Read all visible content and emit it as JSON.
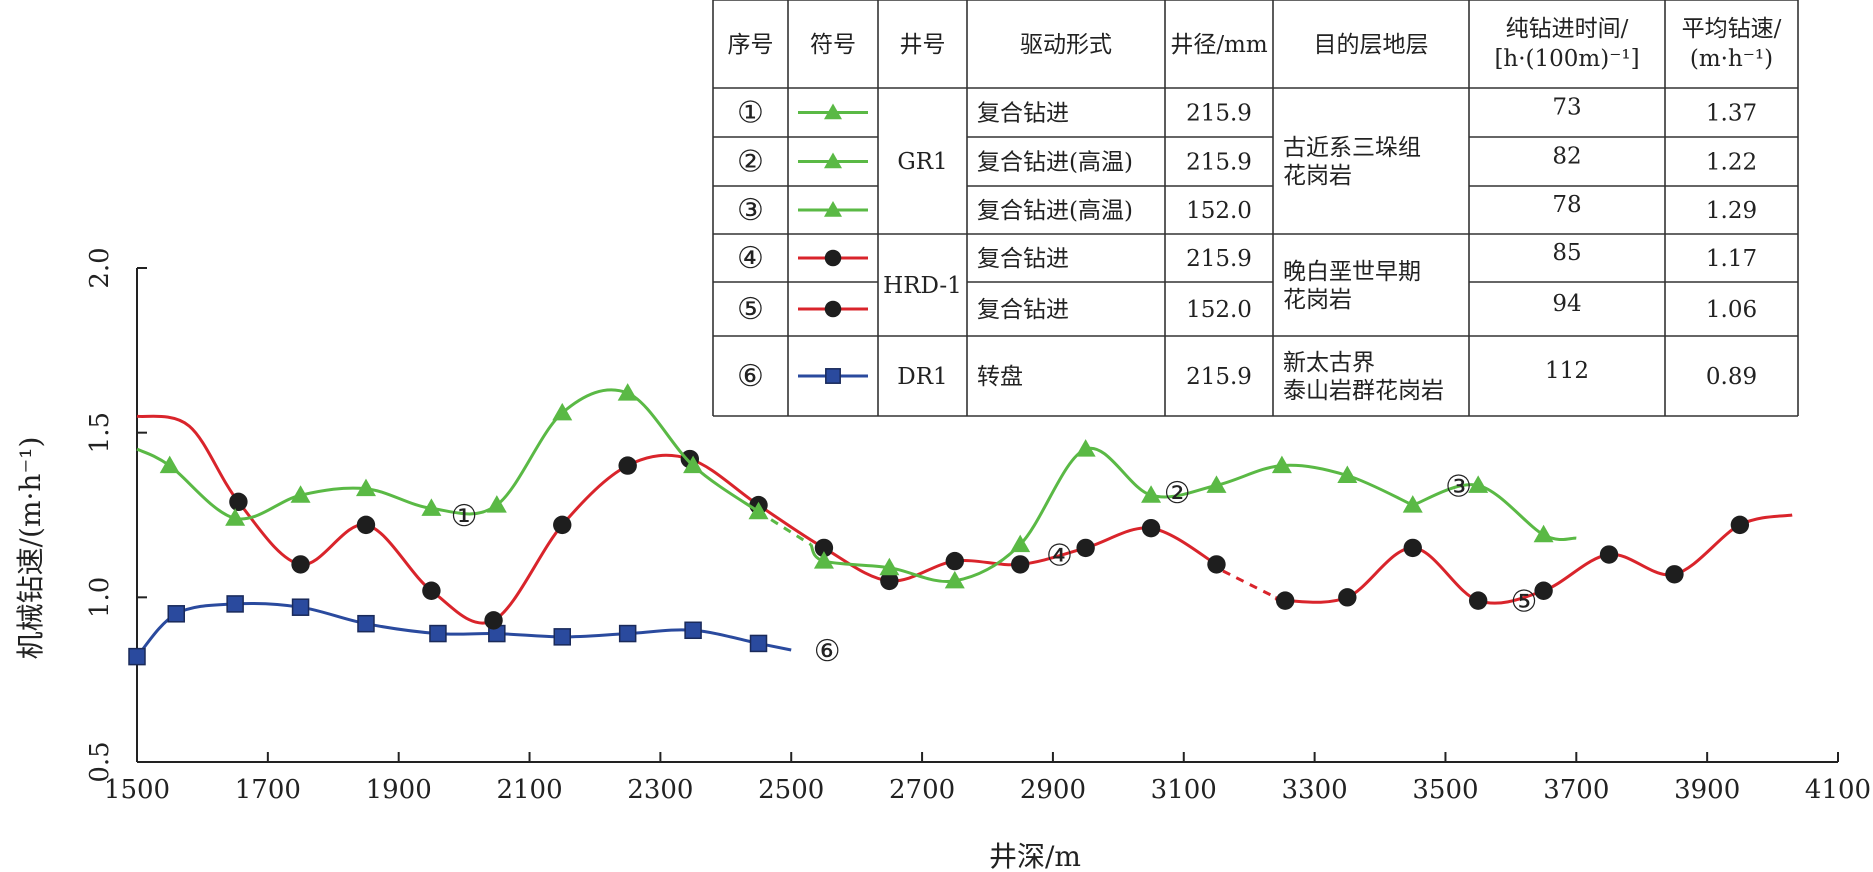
{
  "chart_data": {
    "type": "line",
    "xlabel": "井深/m",
    "ylabel": "机械钻速/(m·h⁻¹)",
    "xlim": [
      1500,
      4100
    ],
    "ylim": [
      0.5,
      2.0
    ],
    "x_ticks": [
      "1500",
      "1700",
      "1900",
      "2100",
      "2300",
      "2500",
      "2700",
      "2900",
      "3100",
      "3300",
      "3500",
      "3700",
      "3900",
      "4100"
    ],
    "y_ticks": [
      "0.5",
      "1.0",
      "1.5",
      "2.0"
    ],
    "grid": false,
    "colors": {
      "gr1": "#5ab945",
      "hrd1": "#d9242b",
      "dr1": "#2a4a9e",
      "axis": "#222222"
    },
    "series": [
      {
        "id": "s1",
        "name": "①",
        "color": "#5ab945",
        "marker": "triangle",
        "label_x": 2000,
        "label_y": 1.25,
        "points": [
          [
            1550,
            1.4
          ],
          [
            1650,
            1.24
          ],
          [
            1750,
            1.31
          ],
          [
            1850,
            1.33
          ],
          [
            1950,
            1.27
          ],
          [
            2050,
            1.28
          ],
          [
            2150,
            1.56
          ],
          [
            2250,
            1.62
          ],
          [
            2350,
            1.4
          ],
          [
            2450,
            1.26
          ]
        ],
        "curve": [
          [
            1500,
            1.45
          ],
          [
            1550,
            1.4
          ],
          [
            1650,
            1.24
          ],
          [
            1750,
            1.31
          ],
          [
            1850,
            1.33
          ],
          [
            1950,
            1.27
          ],
          [
            2050,
            1.28
          ],
          [
            2150,
            1.56
          ],
          [
            2250,
            1.62
          ],
          [
            2350,
            1.4
          ],
          [
            2450,
            1.26
          ]
        ],
        "dash": [
          [
            2450,
            1.26
          ],
          [
            2530,
            1.16
          ]
        ]
      },
      {
        "id": "s2",
        "name": "②",
        "color": "#5ab945",
        "marker": "triangle",
        "label_x": 3090,
        "label_y": 1.32,
        "points": [
          [
            2550,
            1.11
          ],
          [
            2650,
            1.09
          ],
          [
            2750,
            1.05
          ],
          [
            2850,
            1.16
          ],
          [
            2950,
            1.45
          ],
          [
            3050,
            1.31
          ],
          [
            3150,
            1.34
          ],
          [
            3250,
            1.4
          ],
          [
            3350,
            1.37
          ],
          [
            3450,
            1.28
          ]
        ],
        "curve": [
          [
            2530,
            1.16
          ],
          [
            2550,
            1.11
          ],
          [
            2650,
            1.09
          ],
          [
            2750,
            1.05
          ],
          [
            2850,
            1.16
          ],
          [
            2950,
            1.45
          ],
          [
            3050,
            1.31
          ],
          [
            3150,
            1.34
          ],
          [
            3250,
            1.4
          ],
          [
            3350,
            1.37
          ],
          [
            3450,
            1.28
          ]
        ],
        "dash": []
      },
      {
        "id": "s3",
        "name": "③",
        "color": "#5ab945",
        "marker": "triangle",
        "label_x": 3520,
        "label_y": 1.34,
        "points": [
          [
            3550,
            1.34
          ],
          [
            3650,
            1.19
          ]
        ],
        "curve": [
          [
            3450,
            1.28
          ],
          [
            3550,
            1.34
          ],
          [
            3650,
            1.19
          ],
          [
            3700,
            1.18
          ]
        ],
        "dash": []
      },
      {
        "id": "s4",
        "name": "④",
        "color": "#d9242b",
        "marker": "circle",
        "label_x": 2910,
        "label_y": 1.13,
        "points": [
          [
            1655,
            1.29
          ],
          [
            1750,
            1.1
          ],
          [
            1850,
            1.22
          ],
          [
            1950,
            1.02
          ],
          [
            2045,
            0.93
          ],
          [
            2150,
            1.22
          ],
          [
            2250,
            1.4
          ],
          [
            2345,
            1.42
          ],
          [
            2450,
            1.28
          ],
          [
            2550,
            1.15
          ],
          [
            2650,
            1.05
          ],
          [
            2750,
            1.11
          ],
          [
            2850,
            1.1
          ],
          [
            2950,
            1.15
          ],
          [
            3050,
            1.21
          ],
          [
            3150,
            1.1
          ]
        ],
        "curve": [
          [
            1500,
            1.55
          ],
          [
            1580,
            1.52
          ],
          [
            1655,
            1.29
          ],
          [
            1750,
            1.1
          ],
          [
            1850,
            1.22
          ],
          [
            1950,
            1.02
          ],
          [
            2045,
            0.93
          ],
          [
            2150,
            1.22
          ],
          [
            2250,
            1.4
          ],
          [
            2345,
            1.42
          ],
          [
            2450,
            1.28
          ],
          [
            2550,
            1.15
          ],
          [
            2650,
            1.05
          ],
          [
            2750,
            1.11
          ],
          [
            2850,
            1.1
          ],
          [
            2950,
            1.15
          ],
          [
            3050,
            1.21
          ],
          [
            3150,
            1.1
          ]
        ],
        "dash": [
          [
            3160,
            1.08
          ],
          [
            3240,
            1.0
          ]
        ]
      },
      {
        "id": "s5",
        "name": "⑤",
        "color": "#d9242b",
        "marker": "circle",
        "label_x": 3620,
        "label_y": 0.99,
        "points": [
          [
            3255,
            0.99
          ],
          [
            3350,
            1.0
          ],
          [
            3450,
            1.15
          ],
          [
            3550,
            0.99
          ],
          [
            3650,
            1.02
          ],
          [
            3750,
            1.13
          ],
          [
            3850,
            1.07
          ],
          [
            3950,
            1.22
          ]
        ],
        "curve": [
          [
            3240,
            1.0
          ],
          [
            3255,
            0.99
          ],
          [
            3350,
            1.0
          ],
          [
            3450,
            1.15
          ],
          [
            3550,
            0.99
          ],
          [
            3650,
            1.02
          ],
          [
            3750,
            1.13
          ],
          [
            3850,
            1.07
          ],
          [
            3950,
            1.22
          ],
          [
            4030,
            1.25
          ]
        ],
        "dash": []
      },
      {
        "id": "s6",
        "name": "⑥",
        "color": "#2a4a9e",
        "marker": "square",
        "label_x": 2555,
        "label_y": 0.84,
        "points": [
          [
            1500,
            0.82
          ],
          [
            1560,
            0.95
          ],
          [
            1650,
            0.98
          ],
          [
            1750,
            0.97
          ],
          [
            1850,
            0.92
          ],
          [
            1960,
            0.89
          ],
          [
            2050,
            0.89
          ],
          [
            2150,
            0.88
          ],
          [
            2250,
            0.89
          ],
          [
            2350,
            0.9
          ],
          [
            2450,
            0.86
          ]
        ],
        "curve": [
          [
            1500,
            0.82
          ],
          [
            1560,
            0.95
          ],
          [
            1650,
            0.98
          ],
          [
            1750,
            0.97
          ],
          [
            1850,
            0.92
          ],
          [
            1960,
            0.89
          ],
          [
            2050,
            0.89
          ],
          [
            2150,
            0.88
          ],
          [
            2250,
            0.89
          ],
          [
            2350,
            0.9
          ],
          [
            2450,
            0.86
          ],
          [
            2500,
            0.84
          ]
        ],
        "dash": []
      }
    ]
  },
  "legend_table": {
    "headers": [
      "序号",
      "符号",
      "井号",
      "驱动形式",
      "井径/mm",
      "目的层地层",
      "纯钻进时间/\n[h·(100m)⁻¹]",
      "平均钻速/\n(m·h⁻¹)"
    ],
    "rows": [
      {
        "no": "①",
        "marker": "triangle",
        "color": "#5ab945",
        "drive": "复合钻进",
        "diameter": "215.9",
        "time": "73",
        "speed": "1.37"
      },
      {
        "no": "②",
        "marker": "triangle",
        "color": "#5ab945",
        "drive": "复合钻进(高温)",
        "diameter": "215.9",
        "time": "82",
        "speed": "1.22"
      },
      {
        "no": "③",
        "marker": "triangle",
        "color": "#5ab945",
        "drive": "复合钻进(高温)",
        "diameter": "152.0",
        "time": "78",
        "speed": "1.29"
      },
      {
        "no": "④",
        "marker": "circle",
        "color": "#d9242b",
        "drive": "复合钻进",
        "diameter": "215.9",
        "time": "85",
        "speed": "1.17"
      },
      {
        "no": "⑤",
        "marker": "circle",
        "color": "#d9242b",
        "drive": "复合钻进",
        "diameter": "152.0",
        "time": "94",
        "speed": "1.06"
      },
      {
        "no": "⑥",
        "marker": "square",
        "color": "#2a4a9e",
        "drive": "转盘",
        "diameter": "215.9",
        "time": "112",
        "speed": "0.89"
      }
    ],
    "wells": [
      {
        "name": "GR1",
        "row_start": 0,
        "row_end": 2
      },
      {
        "name": "HRD-1",
        "row_start": 3,
        "row_end": 4
      },
      {
        "name": "DR1",
        "row_start": 5,
        "row_end": 5
      }
    ],
    "formations": [
      {
        "text": "古近系三垛组\n花岗岩",
        "row_start": 0,
        "row_end": 2
      },
      {
        "text": "晚白垩世早期\n花岗岩",
        "row_start": 3,
        "row_end": 4
      },
      {
        "text": "新太古界\n泰山岩群花岗岩",
        "row_start": 5,
        "row_end": 5
      }
    ]
  }
}
